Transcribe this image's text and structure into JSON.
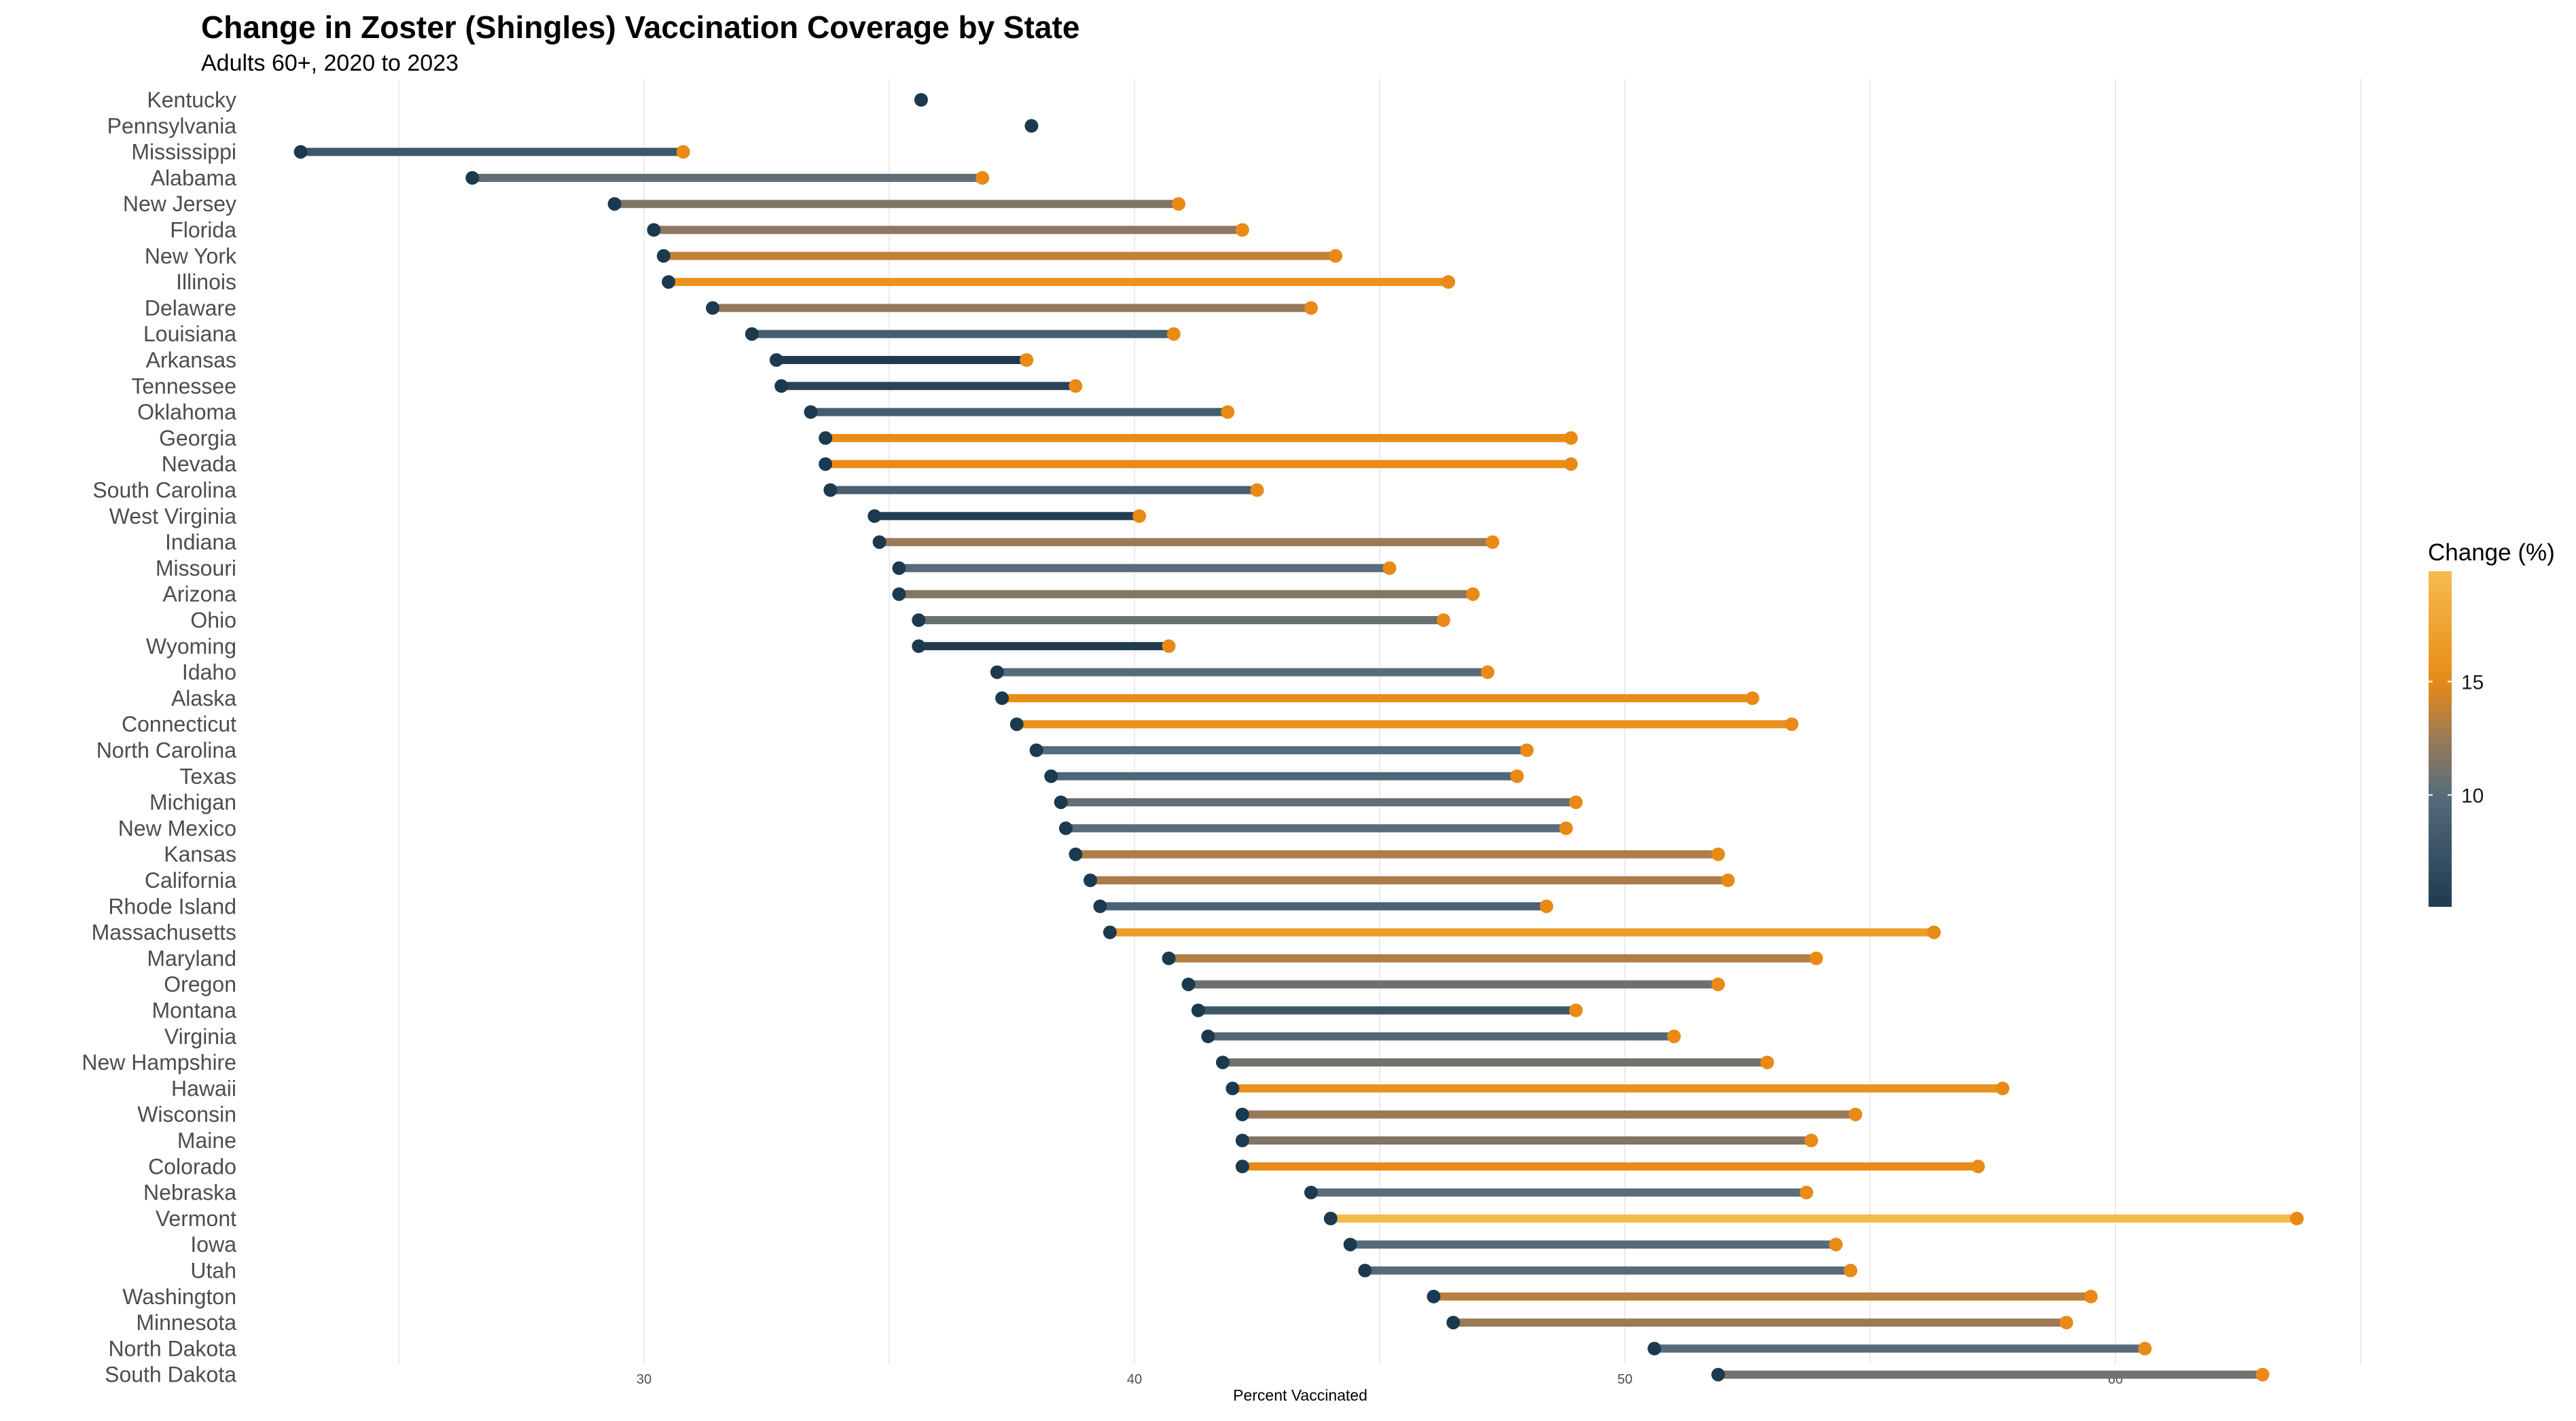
{
  "chart_data": {
    "type": "dumbbell",
    "title": "Change in Zoster (Shingles) Vaccination Coverage by State",
    "subtitle": "Adults 60+, 2020 to 2023",
    "xlabel": "Percent Vaccinated",
    "xlim": [
      21.1,
      65.8
    ],
    "xticks": [
      30,
      40,
      50,
      60
    ],
    "grid": true,
    "legend": {
      "title": "Change (%)",
      "position": "right",
      "ticks": [
        10,
        15
      ],
      "range": [
        5.07,
        19.86
      ],
      "colors": [
        [
          "5",
          "#1e3a4f"
        ],
        [
          "10",
          "#566c7c"
        ],
        [
          "12.5",
          "#9b7a58"
        ],
        [
          "15",
          "#e88a15"
        ],
        [
          "20",
          "#f6bd52"
        ]
      ]
    },
    "start_color": "#1b3a4f",
    "end_color": "#e88a15",
    "series": [
      {
        "state": "Kentucky",
        "start": 35.65,
        "end": null
      },
      {
        "state": "Pennsylvania",
        "start": 37.9,
        "end": null
      },
      {
        "state": "Mississippi",
        "start": 23.0,
        "end": 30.8
      },
      {
        "state": "Alabama",
        "start": 26.5,
        "end": 36.9
      },
      {
        "state": "New Jersey",
        "start": 29.4,
        "end": 40.9
      },
      {
        "state": "Florida",
        "start": 30.2,
        "end": 42.2
      },
      {
        "state": "New York",
        "start": 30.4,
        "end": 44.1
      },
      {
        "state": "Illinois",
        "start": 30.5,
        "end": 46.4
      },
      {
        "state": "Delaware",
        "start": 31.4,
        "end": 43.6
      },
      {
        "state": "Louisiana",
        "start": 32.2,
        "end": 40.8
      },
      {
        "state": "Arkansas",
        "start": 32.7,
        "end": 37.8
      },
      {
        "state": "Tennessee",
        "start": 32.8,
        "end": 38.8
      },
      {
        "state": "Oklahoma",
        "start": 33.4,
        "end": 41.9
      },
      {
        "state": "Georgia",
        "start": 33.7,
        "end": 48.9
      },
      {
        "state": "Nevada",
        "start": 33.7,
        "end": 48.9
      },
      {
        "state": "South Carolina",
        "start": 33.8,
        "end": 42.5
      },
      {
        "state": "West Virginia",
        "start": 34.7,
        "end": 40.1
      },
      {
        "state": "Indiana",
        "start": 34.8,
        "end": 47.3
      },
      {
        "state": "Missouri",
        "start": 35.2,
        "end": 45.2
      },
      {
        "state": "Arizona",
        "start": 35.2,
        "end": 46.9
      },
      {
        "state": "Ohio",
        "start": 35.6,
        "end": 46.3
      },
      {
        "state": "Wyoming",
        "start": 35.6,
        "end": 40.7
      },
      {
        "state": "Idaho",
        "start": 37.2,
        "end": 47.2
      },
      {
        "state": "Alaska",
        "start": 37.3,
        "end": 52.6
      },
      {
        "state": "Connecticut",
        "start": 37.6,
        "end": 53.4
      },
      {
        "state": "North Carolina",
        "start": 38.0,
        "end": 48.0
      },
      {
        "state": "Texas",
        "start": 38.3,
        "end": 47.8
      },
      {
        "state": "Michigan",
        "start": 38.5,
        "end": 49.0
      },
      {
        "state": "New Mexico",
        "start": 38.6,
        "end": 48.8
      },
      {
        "state": "Kansas",
        "start": 38.8,
        "end": 51.9
      },
      {
        "state": "California",
        "start": 39.1,
        "end": 52.1
      },
      {
        "state": "Rhode Island",
        "start": 39.3,
        "end": 48.4
      },
      {
        "state": "Massachusetts",
        "start": 39.5,
        "end": 56.3
      },
      {
        "state": "Maryland",
        "start": 40.7,
        "end": 53.9
      },
      {
        "state": "Oregon",
        "start": 41.1,
        "end": 51.9
      },
      {
        "state": "Montana",
        "start": 41.3,
        "end": 49.0
      },
      {
        "state": "Virginia",
        "start": 41.5,
        "end": 51.0
      },
      {
        "state": "New Hampshire",
        "start": 41.8,
        "end": 52.9
      },
      {
        "state": "Hawaii",
        "start": 42.0,
        "end": 57.7
      },
      {
        "state": "Wisconsin",
        "start": 42.2,
        "end": 54.7
      },
      {
        "state": "Maine",
        "start": 42.2,
        "end": 53.8
      },
      {
        "state": "Colorado",
        "start": 42.2,
        "end": 57.2
      },
      {
        "state": "Nebraska",
        "start": 43.6,
        "end": 53.7
      },
      {
        "state": "Vermont",
        "start": 44.0,
        "end": 63.7
      },
      {
        "state": "Iowa",
        "start": 44.4,
        "end": 54.3
      },
      {
        "state": "Utah",
        "start": 44.7,
        "end": 54.6
      },
      {
        "state": "Washington",
        "start": 46.1,
        "end": 59.5
      },
      {
        "state": "Minnesota",
        "start": 46.5,
        "end": 59.0
      },
      {
        "state": "North Dakota",
        "start": 50.6,
        "end": 60.6
      },
      {
        "state": "South Dakota",
        "start": 51.9,
        "end": 63.0
      }
    ]
  }
}
